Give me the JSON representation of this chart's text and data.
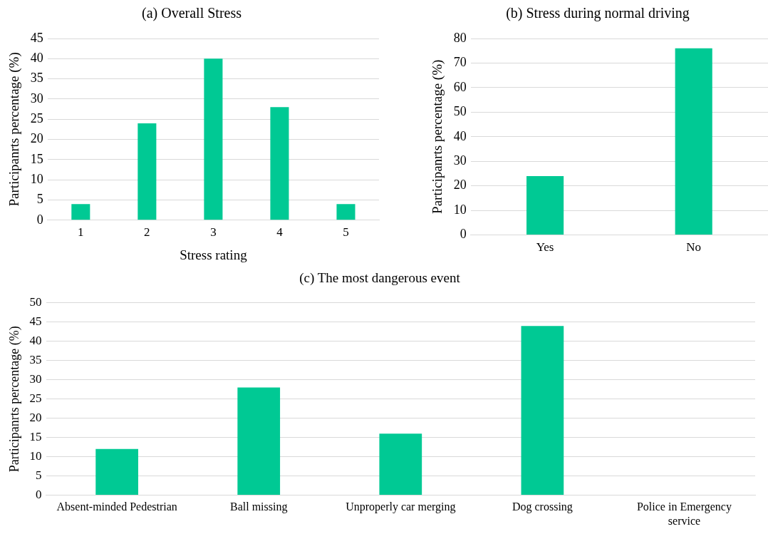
{
  "chart_data": [
    {
      "type": "bar",
      "title": "(a) Overall Stress",
      "xlabel": "Stress rating",
      "ylabel": "Participanrts percentage (%)",
      "categories": [
        "1",
        "2",
        "3",
        "4",
        "5"
      ],
      "values": [
        4,
        24,
        40,
        28,
        4
      ],
      "color": "#00c994",
      "ylim": [
        0,
        45
      ],
      "yticks": [
        0,
        5,
        10,
        15,
        20,
        25,
        30,
        35,
        40,
        45
      ],
      "grid": "y",
      "legend": false
    },
    {
      "type": "bar",
      "title": "(b) Stress during normal driving",
      "ylabel": "Participanrts percentage (%)",
      "categories": [
        "Yes",
        "No"
      ],
      "values": [
        24,
        76
      ],
      "color": "#00c994",
      "ylim": [
        0,
        80
      ],
      "yticks": [
        0,
        10,
        20,
        30,
        40,
        50,
        60,
        70,
        80
      ],
      "grid": "y",
      "legend": false
    },
    {
      "type": "bar",
      "title": "(c) The most dangerous event",
      "ylabel": "Participanrts percentage (%)",
      "categories": [
        "Absent-minded Pedestrian",
        "Ball missing",
        "Unproperly car merging",
        "Dog crossing",
        "Police in Emergency service"
      ],
      "values": [
        12,
        28,
        16,
        44,
        0
      ],
      "color": "#00c994",
      "ylim": [
        0,
        50
      ],
      "yticks": [
        0,
        5,
        10,
        15,
        20,
        25,
        30,
        35,
        40,
        45,
        50
      ],
      "grid": "y",
      "legend": false
    }
  ]
}
